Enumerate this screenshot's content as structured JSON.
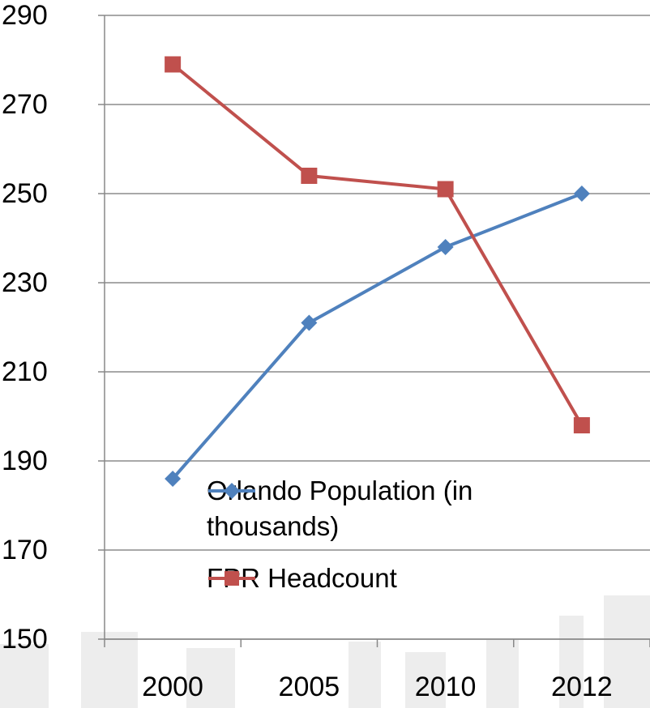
{
  "chart_data": {
    "type": "line",
    "categories": [
      "2000",
      "2005",
      "2010",
      "2012"
    ],
    "series": [
      {
        "name": "Orlando Population (in thousands)",
        "color": "#4f81bd",
        "marker": "diamond",
        "values": [
          186,
          221,
          238,
          250
        ]
      },
      {
        "name": "FPR Headcount",
        "color": "#c0504d",
        "marker": "square",
        "values": [
          279,
          254,
          251,
          198
        ]
      }
    ],
    "ylim": [
      150,
      290
    ],
    "yticks": [
      150,
      170,
      190,
      210,
      230,
      250,
      270,
      290
    ],
    "grid": true
  }
}
